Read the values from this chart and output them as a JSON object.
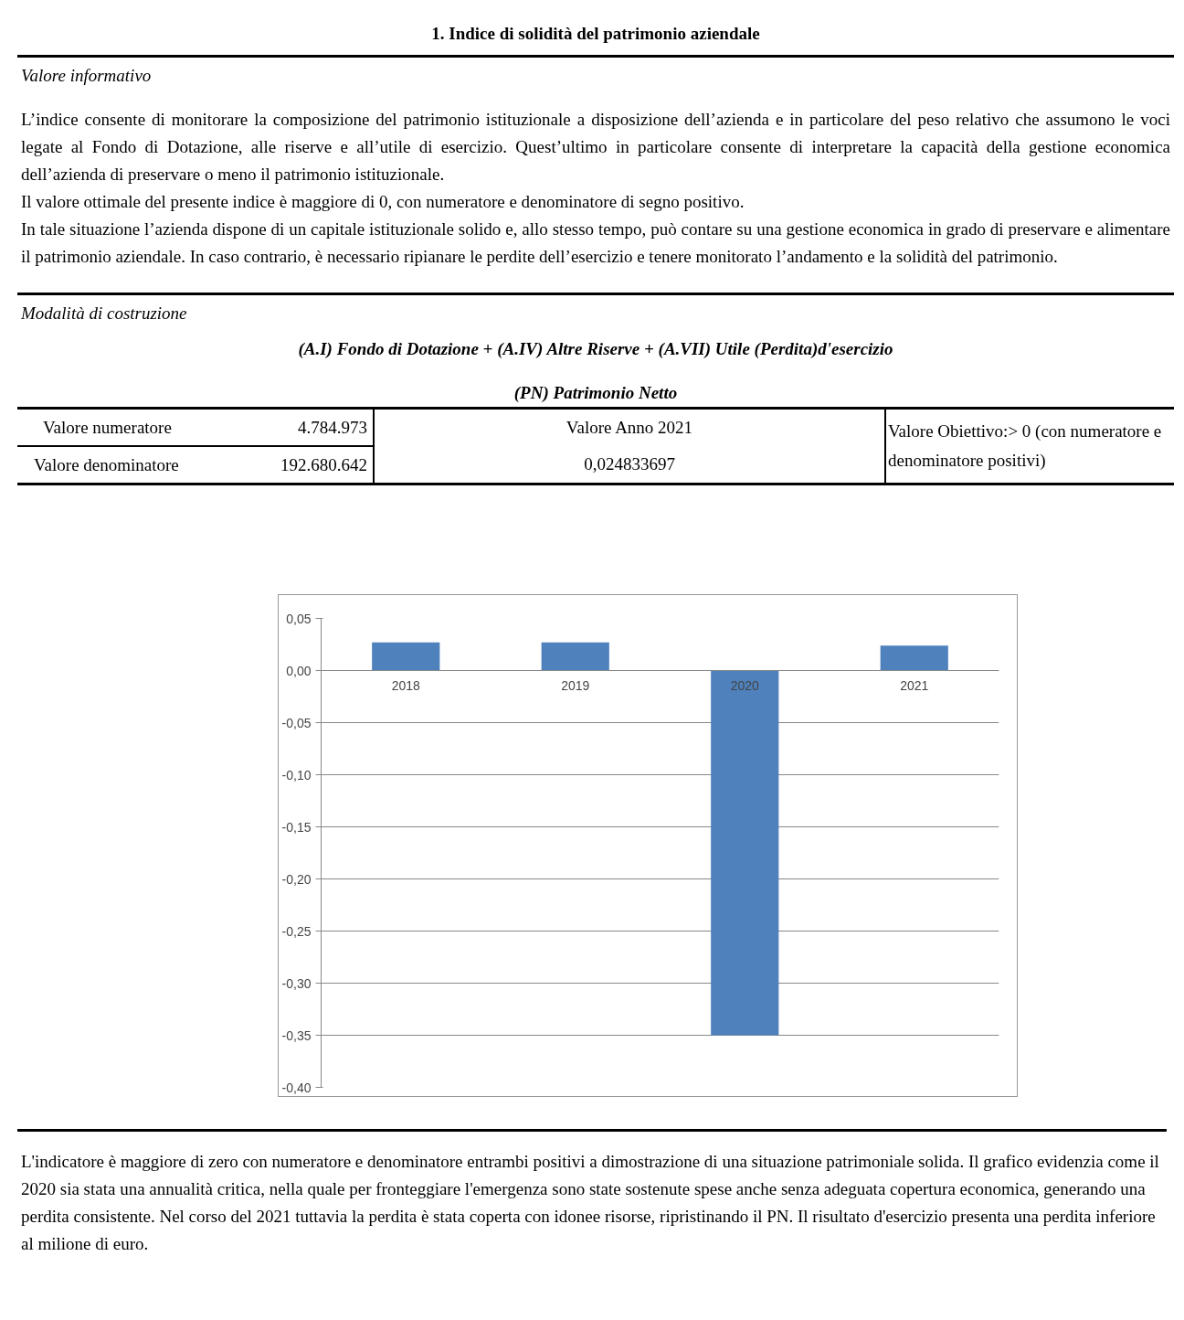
{
  "chart_data": {
    "type": "bar",
    "title": "1. Indice di solidità del patrimonio aziendale",
    "categories": [
      "2018",
      "2019",
      "2020",
      "2021"
    ],
    "values": [
      0.027,
      0.027,
      -0.35,
      0.024
    ],
    "color": "#4f81bd",
    "ylim": [
      -0.4,
      0.05
    ],
    "yticks": [
      {
        "value": 0.05,
        "label": "0,05"
      },
      {
        "value": 0.0,
        "label": "0,00"
      },
      {
        "value": -0.05,
        "label": "-0,05"
      },
      {
        "value": -0.1,
        "label": "-0,10"
      },
      {
        "value": -0.15,
        "label": "-0,15"
      },
      {
        "value": -0.2,
        "label": "-0,20"
      },
      {
        "value": -0.25,
        "label": "-0,25"
      },
      {
        "value": -0.3,
        "label": "-0,30"
      },
      {
        "value": -0.35,
        "label": "-0,35"
      },
      {
        "value": -0.4,
        "label": "-0,40"
      }
    ],
    "grid": "y",
    "annotations": [
      "Valore informativo",
      "L’indice consente di monitorare la composizione del patrimonio istituzionale a disposizione dell’azienda e in particolare del peso relativo che assumono le voci legate al Fondo di Dotazione, alle riserve e all’utile di esercizio. Quest’ultimo in particolare consente di interpretare la capacità della gestione economica dell’azienda di preservare o meno il patrimonio istituzionale.",
      "Il valore ottimale del presente indice è maggiore di 0, con numeratore e denominatore di segno positivo.",
      "In tale situazione l’azienda dispone di un capitale istituzionale solido e, allo stesso tempo, può contare su una gestione economica in grado di preservare e alimentare il patrimonio aziendale. In caso contrario, è necessario ripianare le perdite dell’esercizio e tenere monitorato l’andamento e la solidità del patrimonio.",
      "Modalità di costruzione",
      "(A.I) Fondo di Dotazione + (A.IV) Altre Riserve + (A.VII) Utile (Perdita)d'esercizio",
      "(PN) Patrimonio Netto",
      "Valore numeratore",
      "4.784.973",
      "Valore denominatore",
      "192.680.642",
      "Valore Anno 2021",
      "0,024833697",
      "Valore Obiettivo:> 0 (con numeratore e denominatore positivi)",
      "L'indicatore è maggiore di zero con numeratore e denominatore entrambi positivi a dimostrazione di una situazione patrimoniale solida. Il grafico evidenzia come il 2020 sia stata una annualità critica, nella quale per fronteggiare l'emergenza sono state sostenute spese anche senza adeguata copertura economica, generando una perdita consistente. Nel corso del 2021 tuttavia la perdita è stata coperta con idonee risorse, ripristinando il PN. Il risultato d'esercizio presenta una perdita inferiore al milione di euro."
    ]
  }
}
